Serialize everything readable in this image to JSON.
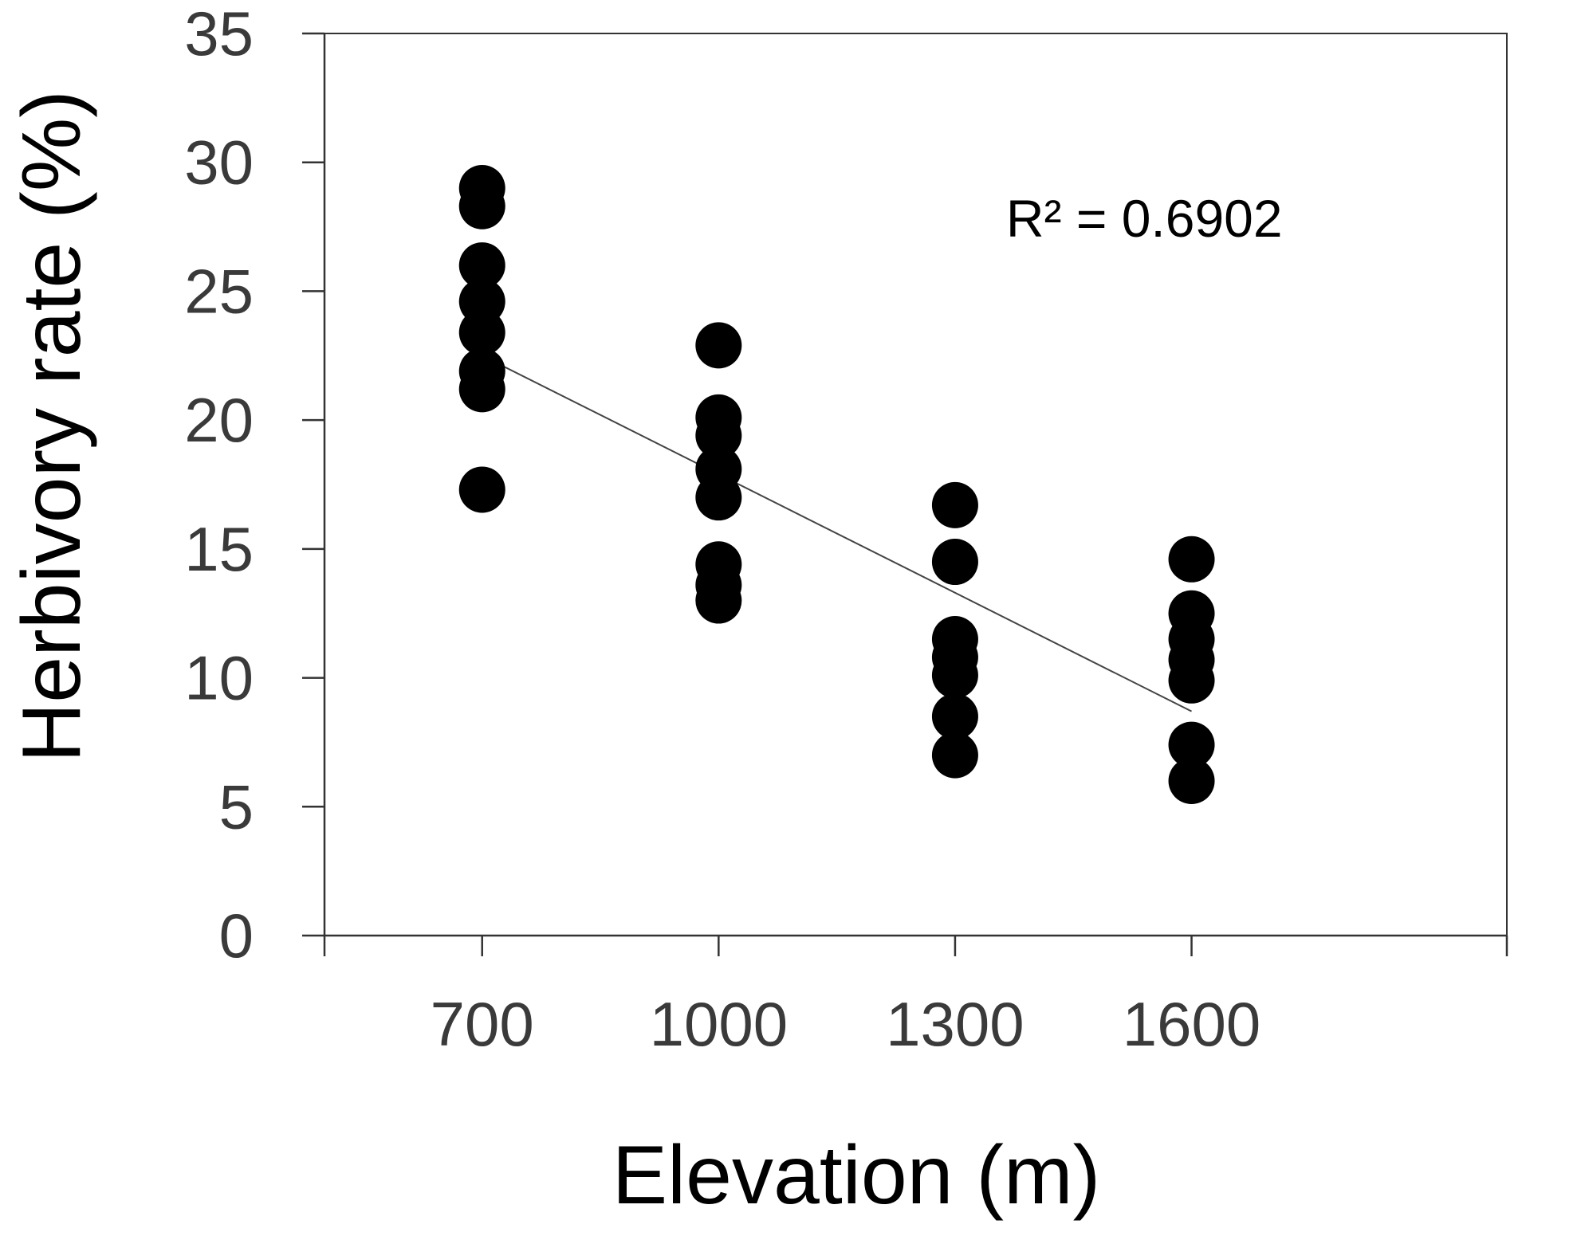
{
  "chart_data": {
    "type": "scatter",
    "title": "",
    "xlabel": "Elevation (m)",
    "ylabel": "Herbivory rate (%)",
    "xlim": [
      500,
      2000
    ],
    "ylim": [
      0,
      35
    ],
    "x_ticks": [
      700,
      1000,
      1300,
      1600
    ],
    "y_ticks": [
      0,
      5,
      10,
      15,
      20,
      25,
      30,
      35
    ],
    "grid": false,
    "legend": "none",
    "marker_color": "#000000",
    "series": [
      {
        "points": [
          {
            "x": 700,
            "y": 29.0
          },
          {
            "x": 700,
            "y": 28.3
          },
          {
            "x": 700,
            "y": 26.0
          },
          {
            "x": 700,
            "y": 24.6
          },
          {
            "x": 700,
            "y": 23.4
          },
          {
            "x": 700,
            "y": 21.9
          },
          {
            "x": 700,
            "y": 21.2
          },
          {
            "x": 700,
            "y": 17.3
          },
          {
            "x": 1000,
            "y": 22.9
          },
          {
            "x": 1000,
            "y": 20.1
          },
          {
            "x": 1000,
            "y": 19.4
          },
          {
            "x": 1000,
            "y": 18.1
          },
          {
            "x": 1000,
            "y": 17.0
          },
          {
            "x": 1000,
            "y": 14.4
          },
          {
            "x": 1000,
            "y": 13.6
          },
          {
            "x": 1000,
            "y": 13.0
          },
          {
            "x": 1300,
            "y": 16.7
          },
          {
            "x": 1300,
            "y": 14.5
          },
          {
            "x": 1300,
            "y": 11.5
          },
          {
            "x": 1300,
            "y": 10.8
          },
          {
            "x": 1300,
            "y": 10.1
          },
          {
            "x": 1300,
            "y": 8.5
          },
          {
            "x": 1300,
            "y": 7.0
          },
          {
            "x": 1600,
            "y": 14.6
          },
          {
            "x": 1600,
            "y": 12.5
          },
          {
            "x": 1600,
            "y": 11.5
          },
          {
            "x": 1600,
            "y": 10.7
          },
          {
            "x": 1600,
            "y": 9.9
          },
          {
            "x": 1600,
            "y": 7.4
          },
          {
            "x": 1600,
            "y": 6.0
          }
        ]
      }
    ],
    "trendline": {
      "x": [
        700,
        1600
      ],
      "y": [
        22.5,
        8.7
      ]
    },
    "annotations": [
      {
        "text": "R² = 0.6902",
        "x": 1540,
        "y": 27.8
      }
    ]
  }
}
